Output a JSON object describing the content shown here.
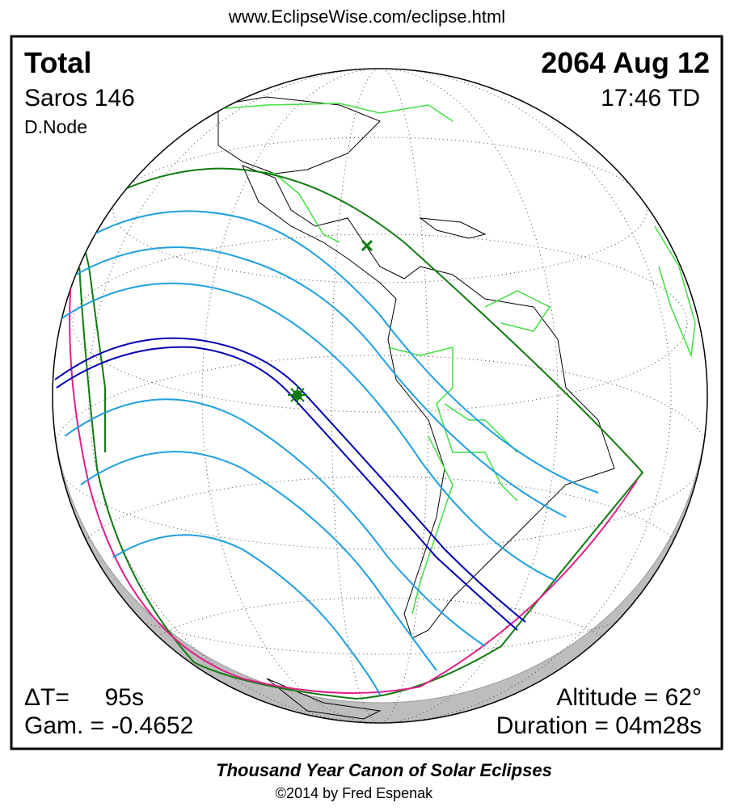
{
  "header": {
    "url": "www.EclipseWise.com/eclipse.html"
  },
  "eclipse": {
    "type": "Total",
    "date": "2064 Aug 12",
    "saros": "Saros 146",
    "time": "17:46 TD",
    "node": "D.Node",
    "delta_t_label": "ΔT=",
    "delta_t_value": "95s",
    "gamma": "Gam. = -0.4652",
    "altitude": "Altitude = 62°",
    "duration": "Duration = 04m28s"
  },
  "footer": {
    "title": "Thousand Year Canon of Solar Eclipses",
    "credit": "©2014 by Fred Espenak"
  }
}
